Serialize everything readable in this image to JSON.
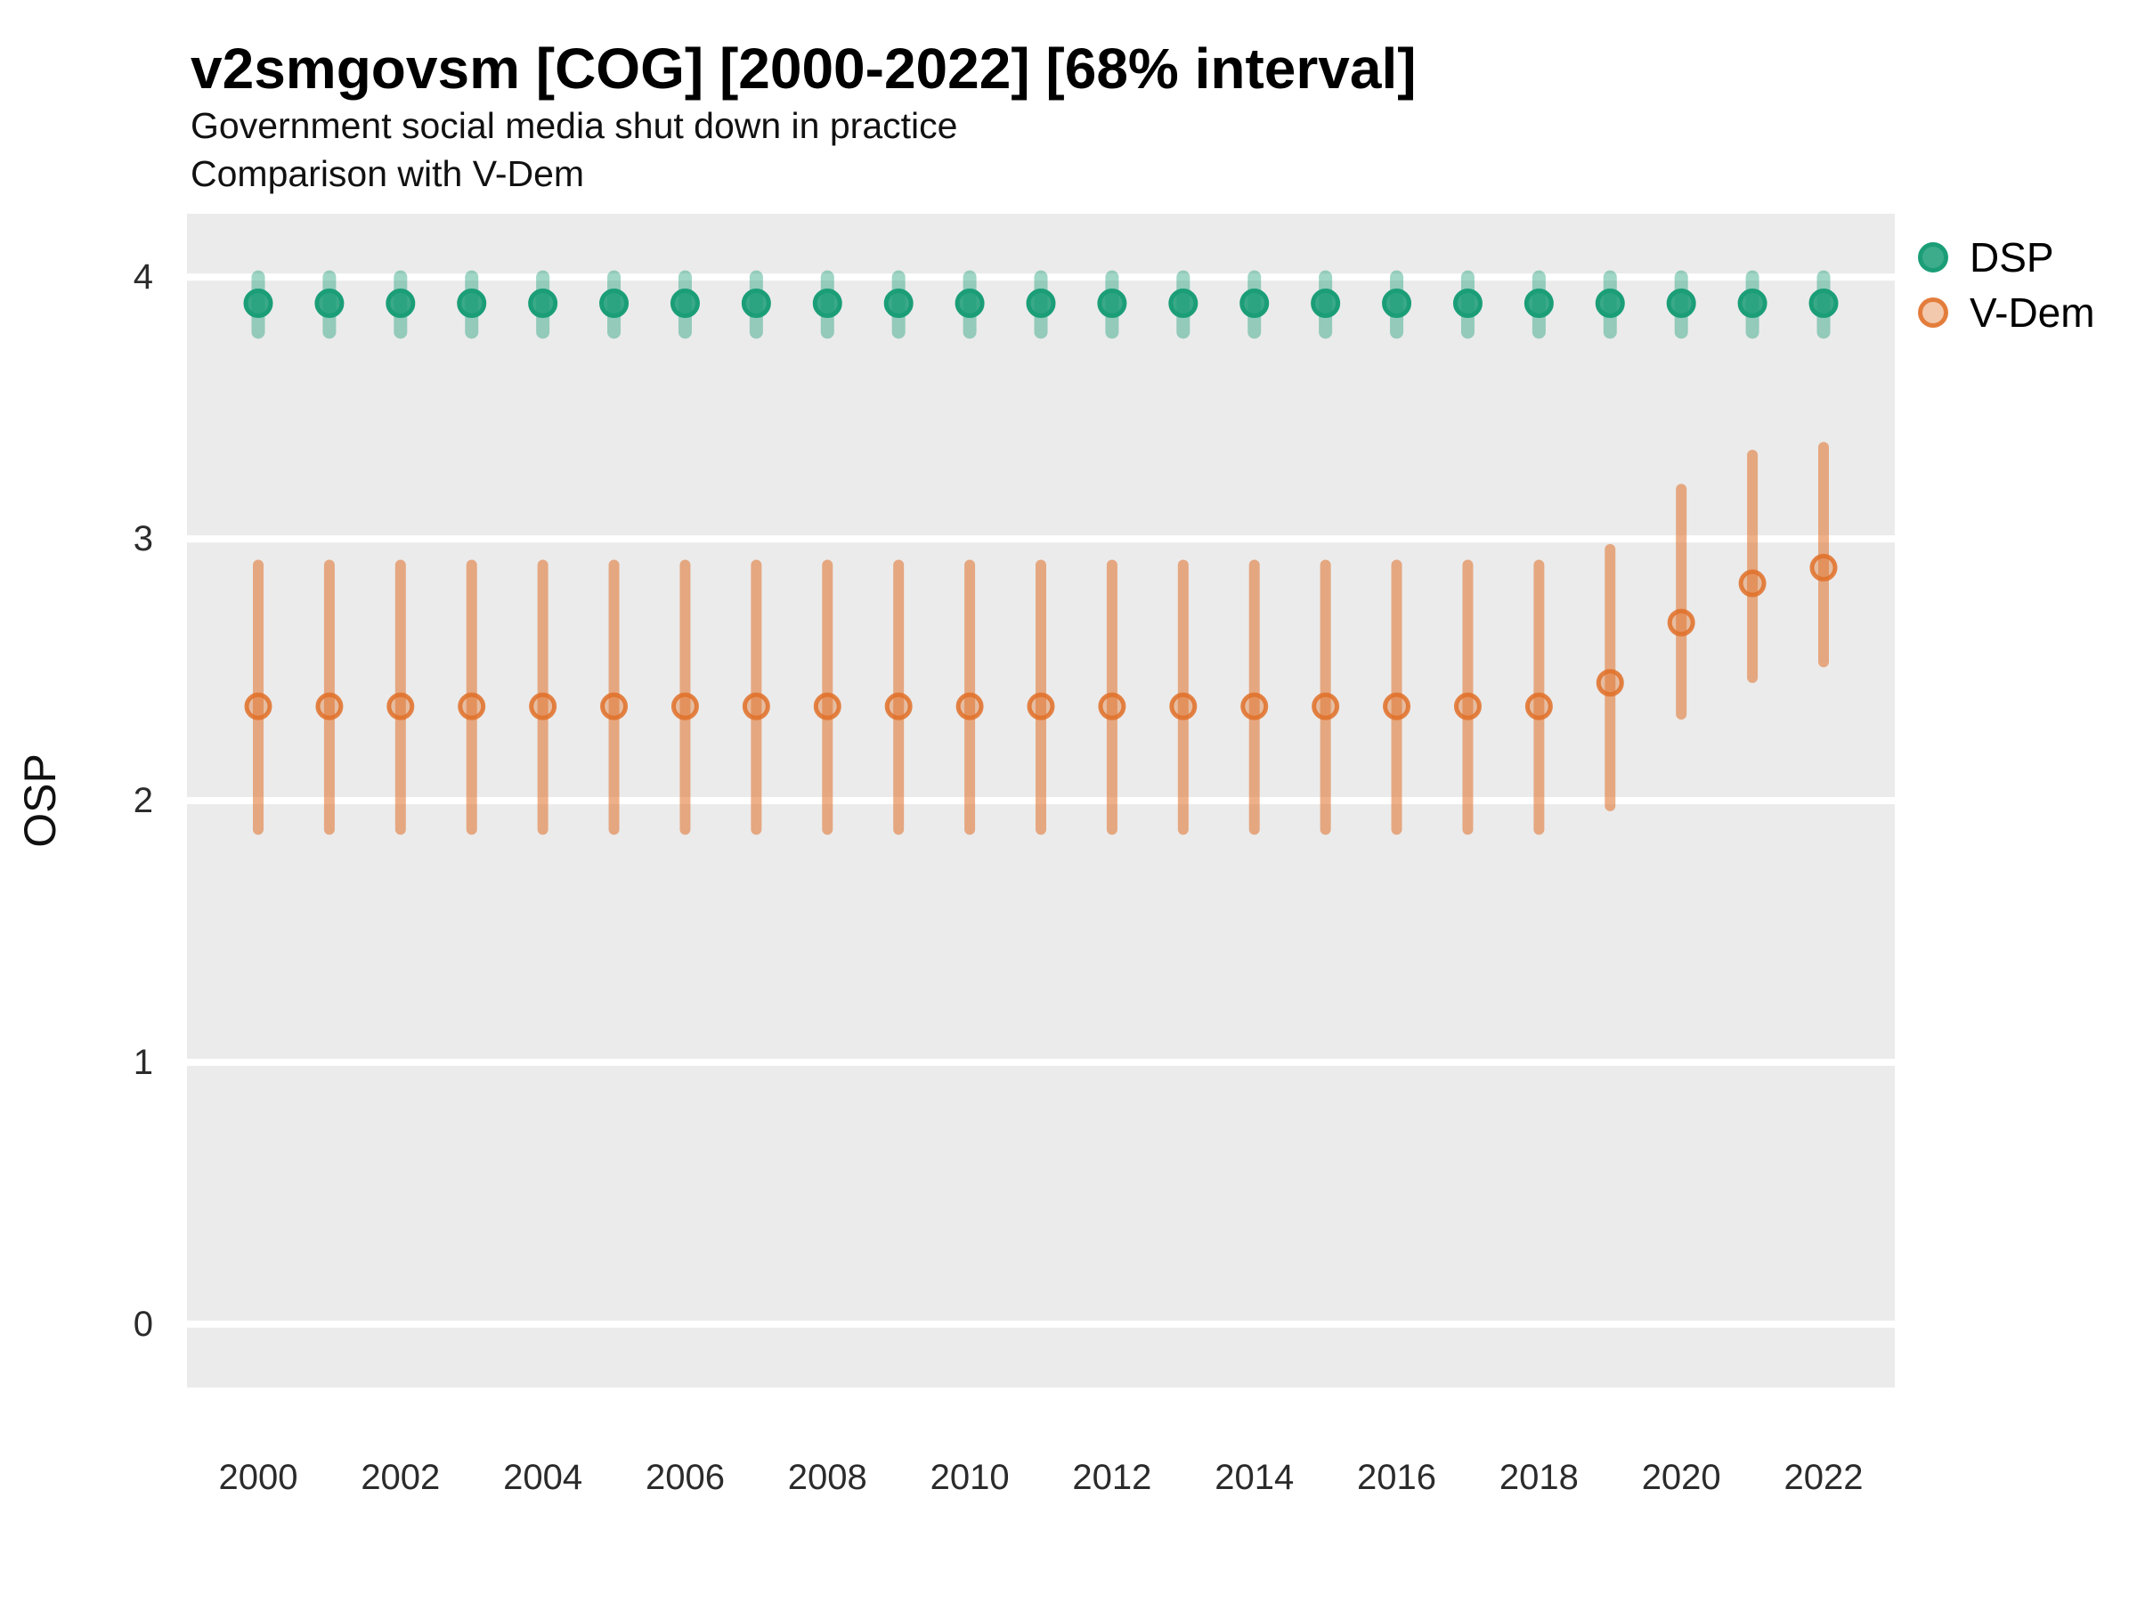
{
  "header": {
    "title": "v2smgovsm [COG] [2000-2022] [68% interval]",
    "subtitle1": "Government social media shut down in practice",
    "subtitle2": "Comparison with V-Dem"
  },
  "legend": {
    "position": "right",
    "items": [
      {
        "label": "DSP"
      },
      {
        "label": "V-Dem"
      }
    ]
  },
  "colors": {
    "panel_bg": "#EBEBEB",
    "grid": "#FFFFFF",
    "tick_text": "#2b2b2b",
    "dsp_base": "#1B9E77",
    "dsp_range": "rgba(27,158,119,0.42)",
    "dsp_fill": "rgba(27,158,119,0.85)",
    "dsp_stroke": "#1B9E77",
    "vdem_base": "#E07028",
    "vdem_range": "rgba(224,112,40,0.55)",
    "vdem_fill": "rgba(224,112,40,0.38)",
    "vdem_stroke": "rgba(224,112,40,0.85)"
  },
  "chart_data": {
    "type": "pointrange",
    "title": "v2smgovsm [COG] [2000-2022] [68% interval]",
    "subtitle": [
      "Government social media shut down in practice",
      "Comparison with V-Dem"
    ],
    "xlabel": "",
    "ylabel": "OSP",
    "x": [
      2000,
      2001,
      2002,
      2003,
      2004,
      2005,
      2006,
      2007,
      2008,
      2009,
      2010,
      2011,
      2012,
      2013,
      2014,
      2015,
      2016,
      2017,
      2018,
      2019,
      2020,
      2021,
      2022
    ],
    "xtick_labels": [
      "2000",
      "2002",
      "2004",
      "2006",
      "2008",
      "2010",
      "2012",
      "2014",
      "2016",
      "2018",
      "2020",
      "2022"
    ],
    "yticks": [
      0,
      1,
      2,
      3,
      4
    ],
    "ylim": [
      -0.242,
      4.242
    ],
    "grid": "major-horizontal-white-on-gray",
    "legend_position": "right",
    "interval": "68%",
    "series": [
      {
        "name": "DSP",
        "est": [
          3.9,
          3.9,
          3.9,
          3.9,
          3.9,
          3.9,
          3.9,
          3.9,
          3.9,
          3.9,
          3.9,
          3.9,
          3.9,
          3.9,
          3.9,
          3.9,
          3.9,
          3.9,
          3.9,
          3.9,
          3.9,
          3.9,
          3.9
        ],
        "lo": [
          3.79,
          3.79,
          3.79,
          3.79,
          3.79,
          3.79,
          3.79,
          3.79,
          3.79,
          3.79,
          3.79,
          3.79,
          3.79,
          3.79,
          3.79,
          3.79,
          3.79,
          3.79,
          3.79,
          3.79,
          3.79,
          3.79,
          3.79
        ],
        "hi": [
          4.0,
          4.0,
          4.0,
          4.0,
          4.0,
          4.0,
          4.0,
          4.0,
          4.0,
          4.0,
          4.0,
          4.0,
          4.0,
          4.0,
          4.0,
          4.0,
          4.0,
          4.0,
          4.0,
          4.0,
          4.0,
          4.0,
          4.0
        ]
      },
      {
        "name": "V-Dem",
        "est": [
          2.36,
          2.36,
          2.36,
          2.36,
          2.36,
          2.36,
          2.36,
          2.36,
          2.36,
          2.36,
          2.36,
          2.36,
          2.36,
          2.36,
          2.36,
          2.36,
          2.36,
          2.36,
          2.36,
          2.45,
          2.68,
          2.83,
          2.89
        ],
        "lo": [
          1.89,
          1.89,
          1.89,
          1.89,
          1.89,
          1.89,
          1.89,
          1.89,
          1.89,
          1.89,
          1.89,
          1.89,
          1.89,
          1.89,
          1.89,
          1.89,
          1.89,
          1.89,
          1.89,
          1.98,
          2.33,
          2.47,
          2.53
        ],
        "hi": [
          2.9,
          2.9,
          2.9,
          2.9,
          2.9,
          2.9,
          2.9,
          2.9,
          2.9,
          2.9,
          2.9,
          2.9,
          2.9,
          2.9,
          2.9,
          2.9,
          2.9,
          2.9,
          2.9,
          2.96,
          3.19,
          3.32,
          3.35
        ]
      }
    ]
  }
}
